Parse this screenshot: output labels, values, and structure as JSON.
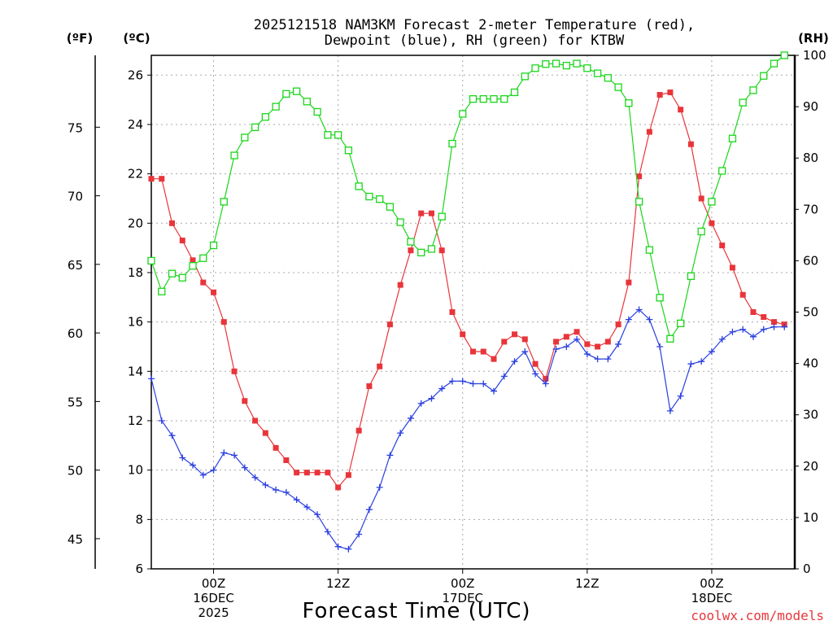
{
  "chart_data": {
    "type": "line",
    "title_line1": "2025121518 NAM3KM Forecast 2-meter Temperature (red),",
    "title_line2": "Dewpoint (blue), RH (green) for KTBW",
    "xlabel": "Forecast Time (UTC)",
    "credit": "coolwx.com/models",
    "units": {
      "fahrenheit": "(ºF)",
      "celsius": "(ºC)",
      "rh": "(RH)"
    },
    "x_hours_range": [
      0,
      62
    ],
    "x_ticks": [
      {
        "h": 6,
        "lines": [
          "00Z",
          "16DEC",
          "2025"
        ]
      },
      {
        "h": 18,
        "lines": [
          "12Z"
        ]
      },
      {
        "h": 30,
        "lines": [
          "00Z",
          "17DEC"
        ]
      },
      {
        "h": 42,
        "lines": [
          "12Z"
        ]
      },
      {
        "h": 54,
        "lines": [
          "00Z",
          "18DEC"
        ]
      }
    ],
    "celsius_axis": {
      "range": [
        6,
        26.8
      ],
      "ticks": [
        6,
        8,
        10,
        12,
        14,
        16,
        18,
        20,
        22,
        24,
        26
      ]
    },
    "fahrenheit_axis": {
      "ticks": [
        45,
        50,
        55,
        60,
        65,
        70,
        75
      ]
    },
    "rh_axis": {
      "range": [
        0,
        100
      ],
      "ticks": [
        0,
        10,
        20,
        30,
        40,
        50,
        60,
        70,
        80,
        90,
        100
      ]
    },
    "series": [
      {
        "name": "Temperature",
        "color": "#e8353a",
        "marker": "filled-square",
        "axis": "celsius",
        "values": [
          [
            0,
            21.8
          ],
          [
            1,
            21.8
          ],
          [
            2,
            20.0
          ],
          [
            3,
            19.3
          ],
          [
            4,
            18.5
          ],
          [
            5,
            17.6
          ],
          [
            6,
            17.2
          ],
          [
            7,
            16.0
          ],
          [
            8,
            14.0
          ],
          [
            9,
            12.8
          ],
          [
            10,
            12.0
          ],
          [
            11,
            11.5
          ],
          [
            12,
            10.9
          ],
          [
            13,
            10.4
          ],
          [
            14,
            9.9
          ],
          [
            15,
            9.9
          ],
          [
            16,
            9.9
          ],
          [
            17,
            9.9
          ],
          [
            18,
            9.3
          ],
          [
            19,
            9.8
          ],
          [
            20,
            11.6
          ],
          [
            21,
            13.4
          ],
          [
            22,
            14.2
          ],
          [
            23,
            15.9
          ],
          [
            24,
            17.5
          ],
          [
            25,
            18.9
          ],
          [
            26,
            20.4
          ],
          [
            27,
            20.4
          ],
          [
            28,
            18.9
          ],
          [
            29,
            16.4
          ],
          [
            30,
            15.5
          ],
          [
            31,
            14.8
          ],
          [
            32,
            14.8
          ],
          [
            33,
            14.5
          ],
          [
            34,
            15.2
          ],
          [
            35,
            15.5
          ],
          [
            36,
            15.3
          ],
          [
            37,
            14.3
          ],
          [
            38,
            13.7
          ],
          [
            39,
            15.2
          ],
          [
            40,
            15.4
          ],
          [
            41,
            15.6
          ],
          [
            42,
            15.1
          ],
          [
            43,
            15.0
          ],
          [
            44,
            15.2
          ],
          [
            45,
            15.9
          ],
          [
            46,
            17.6
          ],
          [
            47,
            21.9
          ],
          [
            48,
            23.7
          ],
          [
            49,
            25.2
          ],
          [
            50,
            25.3
          ],
          [
            51,
            24.6
          ],
          [
            52,
            23.2
          ],
          [
            53,
            21.0
          ],
          [
            54,
            20.0
          ],
          [
            55,
            19.1
          ],
          [
            56,
            18.2
          ],
          [
            57,
            17.1
          ],
          [
            58,
            16.4
          ],
          [
            59,
            16.2
          ],
          [
            60,
            16.0
          ],
          [
            61,
            15.9
          ]
        ]
      },
      {
        "name": "Dewpoint",
        "color": "#2a3fe0",
        "marker": "plus",
        "axis": "celsius",
        "values": [
          [
            0,
            13.7
          ],
          [
            1,
            12.0
          ],
          [
            2,
            11.4
          ],
          [
            3,
            10.5
          ],
          [
            4,
            10.2
          ],
          [
            5,
            9.8
          ],
          [
            6,
            10.0
          ],
          [
            7,
            10.7
          ],
          [
            8,
            10.6
          ],
          [
            9,
            10.1
          ],
          [
            10,
            9.7
          ],
          [
            11,
            9.4
          ],
          [
            12,
            9.2
          ],
          [
            13,
            9.1
          ],
          [
            14,
            8.8
          ],
          [
            15,
            8.5
          ],
          [
            16,
            8.2
          ],
          [
            17,
            7.5
          ],
          [
            18,
            6.9
          ],
          [
            19,
            6.8
          ],
          [
            20,
            7.4
          ],
          [
            21,
            8.4
          ],
          [
            22,
            9.3
          ],
          [
            23,
            10.6
          ],
          [
            24,
            11.5
          ],
          [
            25,
            12.1
          ],
          [
            26,
            12.7
          ],
          [
            27,
            12.9
          ],
          [
            28,
            13.3
          ],
          [
            29,
            13.6
          ],
          [
            30,
            13.6
          ],
          [
            31,
            13.5
          ],
          [
            32,
            13.5
          ],
          [
            33,
            13.2
          ],
          [
            34,
            13.8
          ],
          [
            35,
            14.4
          ],
          [
            36,
            14.8
          ],
          [
            37,
            13.9
          ],
          [
            38,
            13.5
          ],
          [
            39,
            14.9
          ],
          [
            40,
            15.0
          ],
          [
            41,
            15.3
          ],
          [
            42,
            14.7
          ],
          [
            43,
            14.5
          ],
          [
            44,
            14.5
          ],
          [
            45,
            15.1
          ],
          [
            46,
            16.1
          ],
          [
            47,
            16.5
          ],
          [
            48,
            16.1
          ],
          [
            49,
            15.0
          ],
          [
            50,
            12.4
          ],
          [
            51,
            13.0
          ],
          [
            52,
            14.3
          ],
          [
            53,
            14.4
          ],
          [
            54,
            14.8
          ],
          [
            55,
            15.3
          ],
          [
            56,
            15.6
          ],
          [
            57,
            15.7
          ],
          [
            58,
            15.4
          ],
          [
            59,
            15.7
          ],
          [
            60,
            15.8
          ],
          [
            61,
            15.8
          ]
        ]
      },
      {
        "name": "RH",
        "color": "#1ad61a",
        "marker": "open-square",
        "axis": "rh",
        "values": [
          [
            0,
            60.0
          ],
          [
            1,
            54.0
          ],
          [
            2,
            57.5
          ],
          [
            3,
            56.7
          ],
          [
            4,
            59.0
          ],
          [
            5,
            60.5
          ],
          [
            6,
            63.0
          ],
          [
            7,
            71.5
          ],
          [
            8,
            80.5
          ],
          [
            9,
            84.0
          ],
          [
            10,
            86.0
          ],
          [
            11,
            88.0
          ],
          [
            12,
            90.0
          ],
          [
            13,
            92.5
          ],
          [
            14,
            93.0
          ],
          [
            15,
            91.0
          ],
          [
            16,
            89.0
          ],
          [
            17,
            84.5
          ],
          [
            18,
            84.5
          ],
          [
            19,
            81.5
          ],
          [
            20,
            74.5
          ],
          [
            21,
            72.5
          ],
          [
            22,
            72.0
          ],
          [
            23,
            70.5
          ],
          [
            24,
            67.5
          ],
          [
            25,
            63.7
          ],
          [
            26,
            61.6
          ],
          [
            27,
            62.3
          ],
          [
            28,
            68.6
          ],
          [
            29,
            82.8
          ],
          [
            30,
            88.6
          ],
          [
            31,
            91.5
          ],
          [
            32,
            91.5
          ],
          [
            33,
            91.5
          ],
          [
            34,
            91.5
          ],
          [
            35,
            92.8
          ],
          [
            36,
            95.9
          ],
          [
            37,
            97.5
          ],
          [
            38,
            98.3
          ],
          [
            39,
            98.4
          ],
          [
            40,
            98.0
          ],
          [
            41,
            98.4
          ],
          [
            42,
            97.5
          ],
          [
            43,
            96.5
          ],
          [
            44,
            95.6
          ],
          [
            45,
            93.8
          ],
          [
            46,
            90.7
          ],
          [
            47,
            71.5
          ],
          [
            48,
            62.1
          ],
          [
            49,
            52.8
          ],
          [
            50,
            44.8
          ],
          [
            51,
            47.8
          ],
          [
            52,
            57.0
          ],
          [
            53,
            65.7
          ],
          [
            54,
            71.5
          ],
          [
            55,
            77.5
          ],
          [
            56,
            83.8
          ],
          [
            57,
            90.8
          ],
          [
            58,
            93.2
          ],
          [
            59,
            96.0
          ],
          [
            60,
            98.4
          ],
          [
            61,
            100.0
          ]
        ]
      }
    ]
  }
}
